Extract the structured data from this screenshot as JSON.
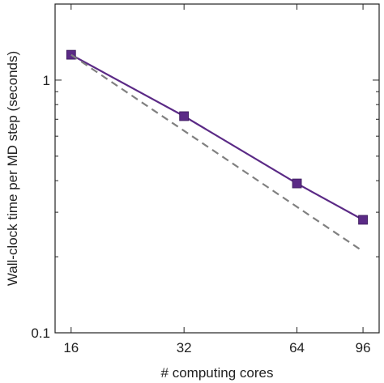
{
  "chart_data": {
    "type": "line",
    "title": "",
    "xlabel": "# computing cores",
    "ylabel": "Wall-clock time per MD step (seconds)",
    "x_scale": "log",
    "y_scale": "log",
    "xlim": [
      14.5,
      106
    ],
    "ylim": [
      0.1,
      2.0
    ],
    "x_ticks": [
      16,
      32,
      64,
      96
    ],
    "x_tick_labels": [
      "16",
      "32",
      "64",
      "96"
    ],
    "y_ticks": [
      0.1,
      1
    ],
    "y_tick_labels": [
      "0.1",
      "1"
    ],
    "grid": false,
    "legend": "none",
    "series": [
      {
        "style": "solid",
        "marker": "square",
        "color": "#5b2a86",
        "x": [
          16,
          32,
          64,
          96
        ],
        "y": [
          1.26,
          0.72,
          0.39,
          0.28
        ]
      },
      {
        "style": "dashed",
        "marker": "none",
        "color": "#808080",
        "x": [
          16,
          96
        ],
        "y": [
          1.26,
          0.21
        ]
      }
    ]
  }
}
